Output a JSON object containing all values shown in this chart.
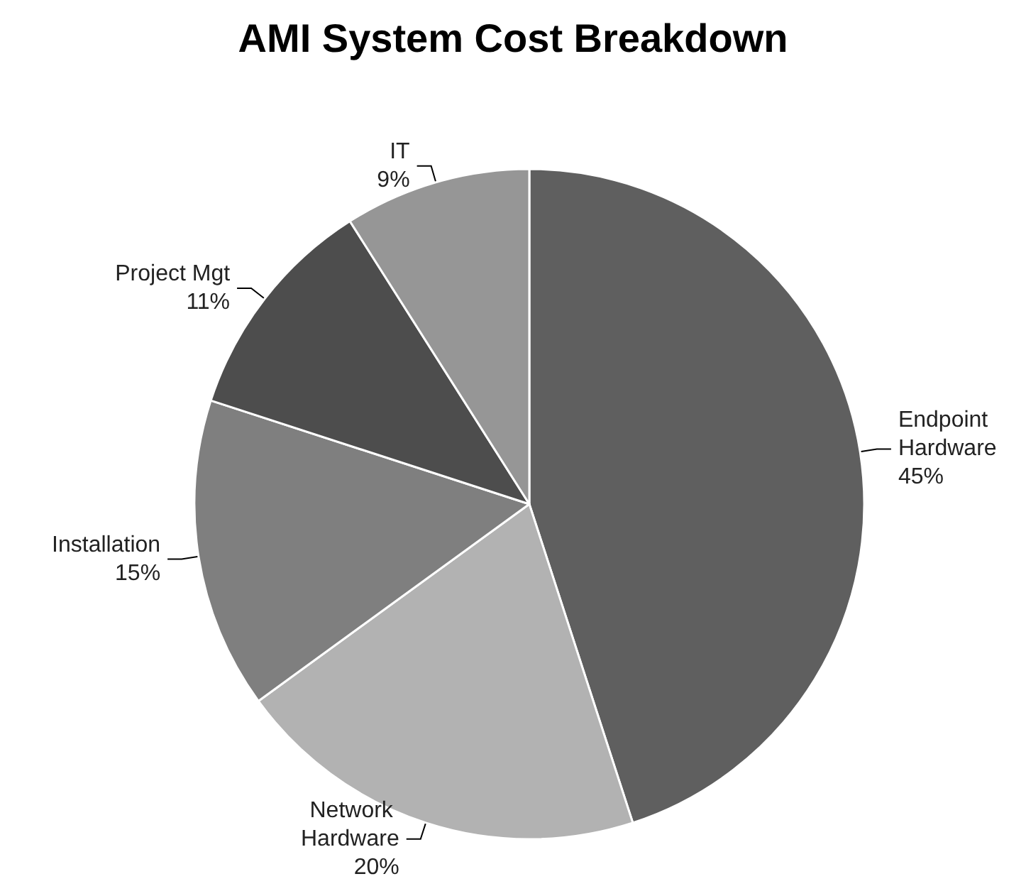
{
  "chart_data": {
    "type": "pie",
    "title": "AMI System Cost Breakdown",
    "categories": [
      "Endpoint Hardware",
      "Network Hardware",
      "Installation",
      "Project Mgt",
      "IT"
    ],
    "values": [
      45,
      20,
      15,
      11,
      9
    ],
    "colors": [
      "#5f5f5f",
      "#b2b2b2",
      "#7f7f7f",
      "#4d4d4d",
      "#969696"
    ],
    "value_labels": [
      "45%",
      "20%",
      "15%",
      "11%",
      "9%"
    ],
    "legend": false
  }
}
